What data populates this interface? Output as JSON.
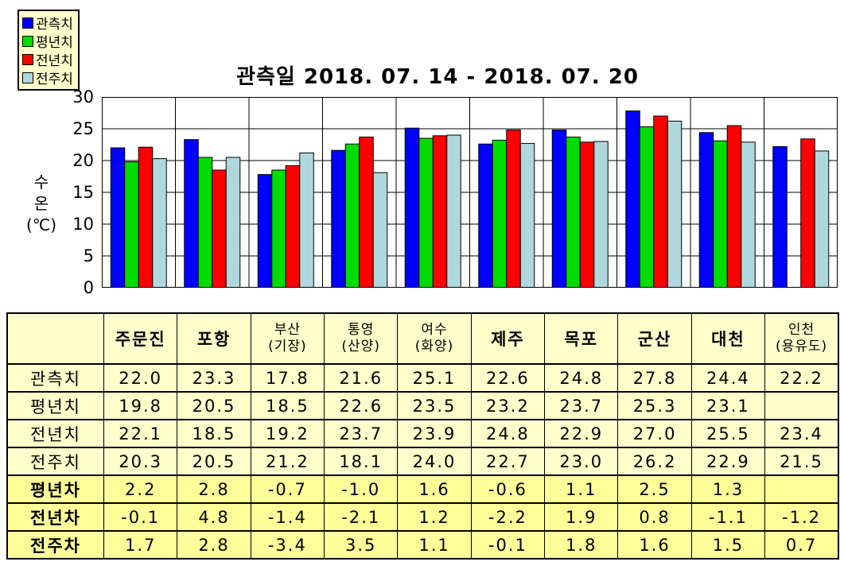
{
  "chart_data": {
    "type": "bar",
    "title": "관측일 2018. 07. 14 - 2018. 07. 20",
    "ylabel": "수온 (℃)",
    "ylabel_display": "수\n온\n(℃)",
    "ylim": [
      0,
      30
    ],
    "yticks": [
      0,
      5,
      10,
      15,
      20,
      25,
      30
    ],
    "grid": "horizontal-major + vertical-category-separators",
    "legend_position": "top-left",
    "categories": [
      "주문진",
      "포항",
      "부산(기장)",
      "통영(산양)",
      "여수(화양)",
      "제주",
      "목포",
      "군산",
      "대천",
      "인천(용유도)"
    ],
    "series": [
      {
        "name": "관측치",
        "color": "#0000FF",
        "values": [
          22.0,
          23.3,
          17.8,
          21.6,
          25.1,
          22.6,
          24.8,
          27.8,
          24.4,
          22.2
        ]
      },
      {
        "name": "평년치",
        "color": "#00DC00",
        "values": [
          19.8,
          20.5,
          18.5,
          22.6,
          23.5,
          23.2,
          23.7,
          25.3,
          23.1,
          null
        ]
      },
      {
        "name": "전년치",
        "color": "#FF0000",
        "values": [
          22.1,
          18.5,
          19.2,
          23.7,
          23.9,
          24.8,
          22.9,
          27.0,
          25.5,
          23.4
        ]
      },
      {
        "name": "전주치",
        "color": "#AFD8DC",
        "values": [
          20.3,
          20.5,
          21.2,
          18.1,
          24.0,
          22.7,
          23.0,
          26.2,
          22.9,
          21.5
        ]
      }
    ]
  },
  "table": {
    "corner_label": "",
    "columns": [
      "주문진",
      "포항",
      "부산\n(기장)",
      "통영\n(산양)",
      "여수\n(화양)",
      "제주",
      "목포",
      "군산",
      "대천",
      "인천\n(용유도)"
    ],
    "rows": [
      {
        "label": "관측치",
        "group": "value",
        "values": [
          "22.0",
          "23.3",
          "17.8",
          "21.6",
          "25.1",
          "22.6",
          "24.8",
          "27.8",
          "24.4",
          "22.2"
        ]
      },
      {
        "label": "평년치",
        "group": "value",
        "values": [
          "19.8",
          "20.5",
          "18.5",
          "22.6",
          "23.5",
          "23.2",
          "23.7",
          "25.3",
          "23.1",
          ""
        ]
      },
      {
        "label": "전년치",
        "group": "value",
        "values": [
          "22.1",
          "18.5",
          "19.2",
          "23.7",
          "23.9",
          "24.8",
          "22.9",
          "27.0",
          "25.5",
          "23.4"
        ]
      },
      {
        "label": "전주치",
        "group": "value",
        "values": [
          "20.3",
          "20.5",
          "21.2",
          "18.1",
          "24.0",
          "22.7",
          "23.0",
          "26.2",
          "22.9",
          "21.5"
        ]
      },
      {
        "label": "평년차",
        "group": "diff",
        "values": [
          "2.2",
          "2.8",
          "-0.7",
          "-1.0",
          "1.6",
          "-0.6",
          "1.1",
          "2.5",
          "1.3",
          ""
        ]
      },
      {
        "label": "전년차",
        "group": "diff",
        "values": [
          "-0.1",
          "4.8",
          "-1.4",
          "-2.1",
          "1.2",
          "-2.2",
          "1.9",
          "0.8",
          "-1.1",
          "-1.2"
        ]
      },
      {
        "label": "전주차",
        "group": "diff",
        "values": [
          "1.7",
          "2.8",
          "-3.4",
          "3.5",
          "1.1",
          "-0.1",
          "1.8",
          "1.6",
          "1.5",
          "0.7"
        ]
      }
    ],
    "colors": {
      "header_bg": "#FFFFCC",
      "value_row_bg": "#FFFFCC",
      "diff_row_bg": "#FFFF99",
      "border": "#000000"
    }
  }
}
